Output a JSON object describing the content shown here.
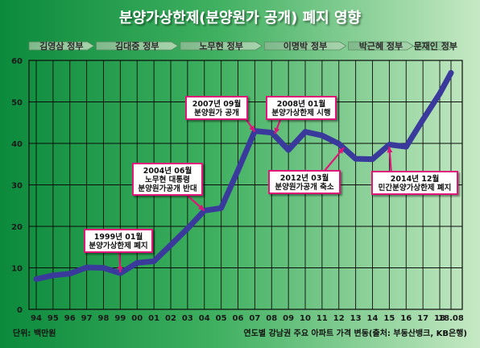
{
  "title": "분양가상한제(분양원가 공개) 폐지 영향",
  "eras": [
    {
      "label": "김영삼 정부",
      "from": 1994,
      "to": 1997
    },
    {
      "label": "김대중 정부",
      "from": 1998,
      "to": 2002
    },
    {
      "label": "노무현 정부",
      "from": 2003,
      "to": 2007
    },
    {
      "label": "이명박 정부",
      "from": 2008,
      "to": 2012
    },
    {
      "label": "박근혜 정부",
      "from": 2013,
      "to": 2016
    },
    {
      "label": "문재인 정부",
      "from": 2017,
      "to": 2018.5
    }
  ],
  "footer": {
    "unit": "단위: 백만원",
    "source": "연도별 강남권 주요 아파트 가격 변동(출처: 부동산뱅크, KB은행)"
  },
  "colors": {
    "line": "#3a3a9c",
    "callout_border": "#e0157a",
    "background_dark": "#0c8a3c",
    "background_light": "#c6e9c4"
  },
  "chart_data": {
    "type": "line",
    "x_tick_labels": [
      "94",
      "95",
      "96",
      "97",
      "98",
      "99",
      "00",
      "01",
      "02",
      "03",
      "04",
      "05",
      "06",
      "07",
      "08",
      "09",
      "10",
      "11",
      "12",
      "13",
      "14",
      "15",
      "16",
      "17",
      "18",
      "18.08"
    ],
    "y_ticks": [
      0,
      10,
      20,
      30,
      40,
      50,
      60
    ],
    "ylim": [
      0,
      60
    ],
    "xlim": [
      1994,
      2018.67
    ],
    "grid": true,
    "series": [
      {
        "points": [
          [
            1994,
            7.3
          ],
          [
            1995,
            8.2
          ],
          [
            1996,
            8.6
          ],
          [
            1997,
            10.1
          ],
          [
            1998,
            10.0
          ],
          [
            1999,
            8.7
          ],
          [
            2000,
            11.2
          ],
          [
            2001,
            11.6
          ],
          [
            2002,
            15.5
          ],
          [
            2003,
            19.5
          ],
          [
            2004,
            23.8
          ],
          [
            2005,
            24.4
          ],
          [
            2006,
            33.5
          ],
          [
            2007,
            43.0
          ],
          [
            2008,
            42.6
          ],
          [
            2009,
            38.4
          ],
          [
            2010,
            42.8
          ],
          [
            2011,
            41.9
          ],
          [
            2012,
            39.9
          ],
          [
            2013,
            36.3
          ],
          [
            2014,
            36.2
          ],
          [
            2015,
            39.7
          ],
          [
            2016,
            39.2
          ],
          [
            2017,
            45.7
          ],
          [
            2018,
            52.0
          ],
          [
            2018.67,
            57.0
          ]
        ]
      }
    ],
    "annotations": [
      {
        "lines": [
          "1999년 01월",
          "분양가상한제 폐지"
        ],
        "target": [
          1999,
          8.9
        ]
      },
      {
        "lines": [
          "2004년 06월",
          "노무현 대통령",
          "분양원가공개 반대"
        ],
        "target": [
          2004,
          23.8
        ]
      },
      {
        "lines": [
          "2007년 09월",
          "분양원가 공개"
        ],
        "target": [
          2007,
          42.8
        ]
      },
      {
        "lines": [
          "2008년 01월",
          "분양가상한제 시행"
        ],
        "target": [
          2008.2,
          42.3
        ]
      },
      {
        "lines": [
          "2012년 03월",
          "분양원가공개 축소"
        ],
        "target": [
          2012.3,
          39.0
        ]
      },
      {
        "lines": [
          "2014년 12월",
          "민간분양가상한제 폐지"
        ],
        "target": [
          2015.0,
          39.2
        ]
      }
    ]
  }
}
